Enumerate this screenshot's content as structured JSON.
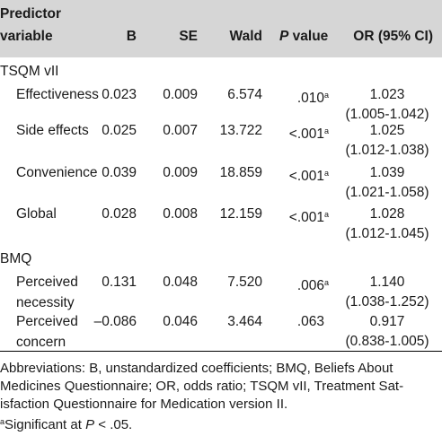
{
  "header": {
    "predictor_line1": "Predictor",
    "predictor_line2": "variable",
    "b": "B",
    "se": "SE",
    "wald": "Wald",
    "p_italic": "P",
    "p_rest": " value",
    "or": "OR (95% CI)"
  },
  "groups": [
    {
      "title": "TSQM vII",
      "rows": [
        {
          "label": [
            "Effectiveness"
          ],
          "b": "0.023",
          "se": "0.009",
          "wald": "6.574",
          "p": ".010",
          "p_sup": "a",
          "or": "1.023",
          "ci": "(1.005-1.042)"
        },
        {
          "label": [
            "Side effects"
          ],
          "b": "0.025",
          "se": "0.007",
          "wald": "13.722",
          "p": "<.001",
          "p_sup": "a",
          "or": "1.025",
          "ci": "(1.012-1.038)"
        },
        {
          "label": [
            "Convenience"
          ],
          "b": "0.039",
          "se": "0.009",
          "wald": "18.859",
          "p": "<.001",
          "p_sup": "a",
          "or": "1.039",
          "ci": "(1.021-1.058)"
        },
        {
          "label": [
            "Global"
          ],
          "b": "0.028",
          "se": "0.008",
          "wald": "12.159",
          "p": "<.001",
          "p_sup": "a",
          "or": "1.028",
          "ci": "(1.012-1.045)"
        }
      ]
    },
    {
      "title": "BMQ",
      "rows": [
        {
          "label": [
            "Perceived",
            "necessity"
          ],
          "b": "0.131",
          "se": "0.048",
          "wald": "7.520",
          "p": ".006",
          "p_sup": "a",
          "or": "1.140",
          "ci": "(1.038-1.252)"
        },
        {
          "label": [
            "Perceived",
            "concern"
          ],
          "b": "–0.086",
          "se": "0.046",
          "wald": "3.464",
          "p": ".063",
          "p_sup": "",
          "or": "0.917",
          "ci": "(0.838-1.005)"
        }
      ]
    }
  ],
  "footnotes": {
    "abbrev_lines": [
      "Abbreviations: B, unstandardized coefficients; BMQ, Beliefs About",
      "Medicines Questionnaire; OR, odds ratio; TSQM vII, Treatment Sat-",
      "isfaction Questionnaire for Medication version II."
    ],
    "sig_sup": "a",
    "sig_prefix": "Significant at ",
    "sig_p": "P",
    "sig_suffix": " < .05."
  }
}
